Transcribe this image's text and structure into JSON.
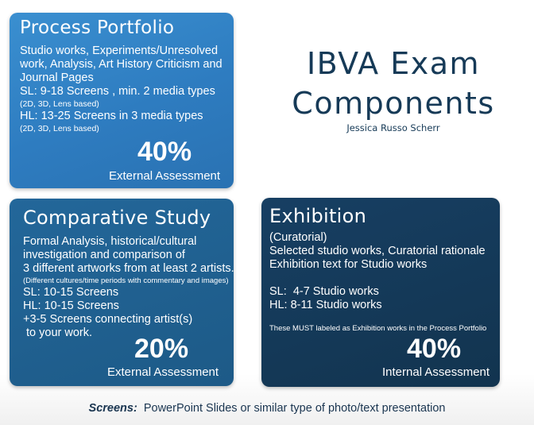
{
  "title": {
    "line1": "IBVA Exam",
    "line2": "Components",
    "author": "Jessica Russo Scherr"
  },
  "process_portfolio": {
    "title": "Process Portfolio",
    "lines": [
      "Studio works, Experiments/Unresolved",
      "work, Analysis, Art History Criticism and",
      "Journal Pages"
    ],
    "sl": "SL: 9-18 Screens , min. 2 media types",
    "sl_note": "(2D, 3D, Lens based)",
    "hl": "HL: 13-25 Screens in 3 media types",
    "hl_note": "(2D, 3D, Lens based)",
    "percent": "40%",
    "assessment": "External Assessment"
  },
  "comparative_study": {
    "title": "Comparative Study",
    "lines": [
      "Formal Analysis, historical/cultural",
      "investigation and comparison of",
      "3 different artworks from at least 2 artists."
    ],
    "note": "(Different cultures/time periods with commentary and images)",
    "sl": "SL: 10-15 Screens",
    "hl": "HL: 10-15 Screens",
    "extra_1": "+3-5 Screens connecting artist(s)",
    "extra_2": " to your work.",
    "percent": "20%",
    "assessment": "External Assessment"
  },
  "exhibition": {
    "title": "Exhibition",
    "lines": [
      "(Curatorial)",
      "Selected studio works, Curatorial rationale",
      "Exhibition text for Studio works"
    ],
    "sl": "SL:  4-7 Studio works",
    "hl": "HL: 8-11 Studio works",
    "note": "These MUST labeled as Exhibition works in the Process Portfolio",
    "percent": "40%",
    "assessment": "Internal Assessment"
  },
  "footer": {
    "label": "Screens:",
    "text": "  PowerPoint Slides or similar type of photo/text presentation"
  }
}
